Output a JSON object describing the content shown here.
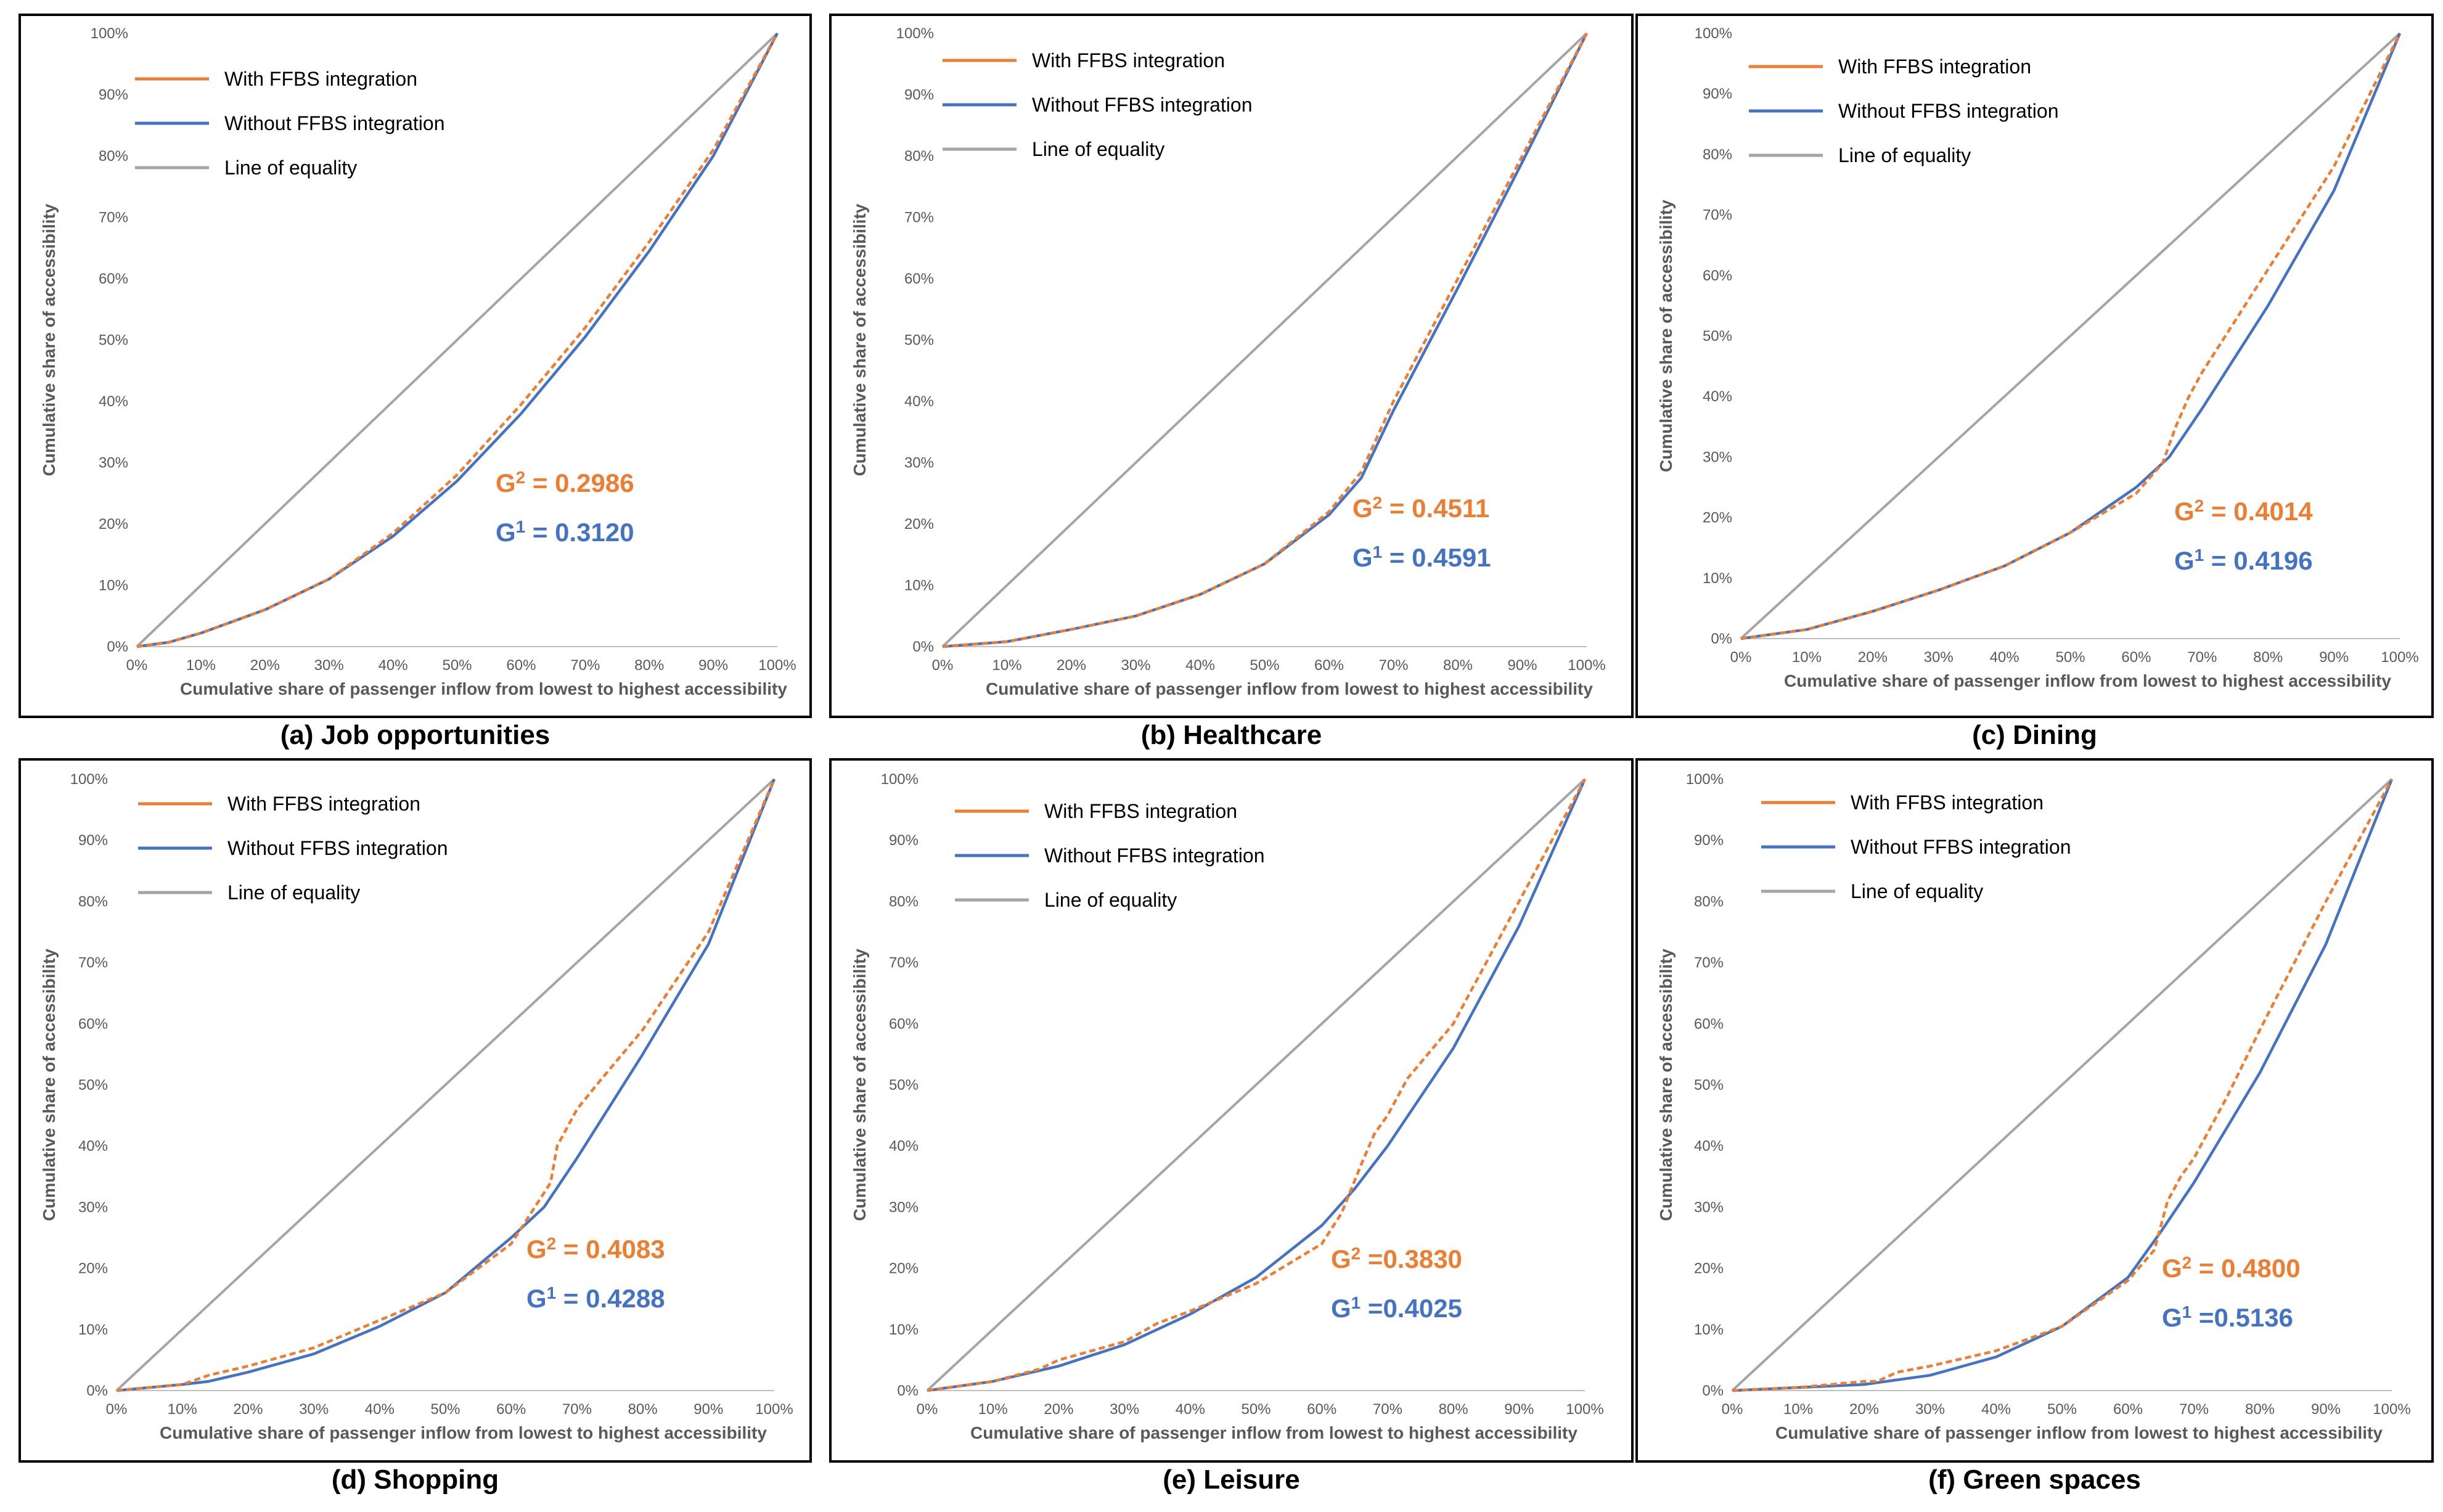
{
  "legend_labels": {
    "with": "With FFBS integration",
    "without": "Without FFBS integration",
    "equality": "Line of equality"
  },
  "axis_labels": {
    "x": "Cumulative share of passenger inflow from lowest to highest accessibility",
    "y": "Cumulative share of accessibility"
  },
  "colors": {
    "with": "#ED7D31",
    "without": "#4472C4",
    "equality": "#A5A5A5"
  },
  "chart_data": [
    {
      "type": "line",
      "caption": "(a) Job  opportunities",
      "ticks": [
        "0%",
        "10%",
        "20%",
        "30%",
        "40%",
        "50%",
        "60%",
        "70%",
        "80%",
        "90%",
        "100%"
      ],
      "xlim": [
        0,
        100
      ],
      "ylim": [
        0,
        100
      ],
      "g2_label": "G",
      "g2_sup": "2",
      "g2_value": " = 0.2986",
      "g1_label": "G",
      "g1_sup": "1",
      "g1_value": " = 0.3120",
      "series": [
        {
          "name": "With FFBS integration",
          "style": "dashed",
          "x": [
            0,
            5,
            10,
            20,
            30,
            40,
            50,
            60,
            70,
            80,
            90,
            100
          ],
          "y": [
            0,
            0.7,
            2.2,
            6,
            11,
            18.5,
            28,
            39.5,
            52,
            66,
            81,
            100
          ]
        },
        {
          "name": "Without FFBS integration",
          "style": "solid",
          "x": [
            0,
            5,
            10,
            20,
            30,
            40,
            50,
            60,
            70,
            80,
            90,
            100
          ],
          "y": [
            0,
            0.7,
            2.2,
            6,
            11,
            18,
            27,
            38,
            50.5,
            64.5,
            80,
            100
          ]
        },
        {
          "name": "Line of equality",
          "style": "solid",
          "x": [
            0,
            100
          ],
          "y": [
            0,
            100
          ]
        }
      ]
    },
    {
      "type": "line",
      "caption": "(b) Healthcare",
      "ticks": [
        "0%",
        "10%",
        "20%",
        "30%",
        "40%",
        "50%",
        "60%",
        "70%",
        "80%",
        "90%",
        "100%"
      ],
      "xlim": [
        0,
        100
      ],
      "ylim": [
        0,
        100
      ],
      "g2_label": "G",
      "g2_sup": "2",
      "g2_value": " = 0.4511",
      "g1_label": "G",
      "g1_sup": "1",
      "g1_value": " = 0.4591",
      "series": [
        {
          "name": "With FFBS integration",
          "style": "dashed",
          "x": [
            0,
            10,
            20,
            30,
            40,
            50,
            60,
            65,
            70,
            80,
            90,
            100
          ],
          "y": [
            0,
            0.8,
            2.8,
            5,
            8.5,
            13.5,
            22,
            28.5,
            40,
            60,
            80,
            100
          ]
        },
        {
          "name": "Without FFBS integration",
          "style": "solid",
          "x": [
            0,
            10,
            20,
            30,
            40,
            50,
            60,
            65,
            70,
            80,
            90,
            100
          ],
          "y": [
            0,
            0.8,
            2.8,
            5,
            8.5,
            13.5,
            21.5,
            27.5,
            38.5,
            58.5,
            79,
            100
          ]
        },
        {
          "name": "Line of equality",
          "style": "solid",
          "x": [
            0,
            100
          ],
          "y": [
            0,
            100
          ]
        }
      ]
    },
    {
      "type": "line",
      "caption": "(c) Dining",
      "ticks": [
        "0%",
        "10%",
        "20%",
        "30%",
        "40%",
        "50%",
        "60%",
        "70%",
        "80%",
        "90%",
        "100%"
      ],
      "xlim": [
        0,
        100
      ],
      "ylim": [
        0,
        100
      ],
      "g2_label": "G",
      "g2_sup": "2",
      "g2_value": " = 0.4014",
      "g1_label": "G",
      "g1_sup": "1",
      "g1_value": " = 0.4196",
      "series": [
        {
          "name": "With FFBS integration",
          "style": "dashed",
          "x": [
            0,
            10,
            20,
            30,
            40,
            50,
            60,
            64,
            66,
            68,
            70,
            80,
            90,
            100
          ],
          "y": [
            0,
            1.5,
            4.5,
            8,
            12,
            17.5,
            24,
            29,
            35,
            40,
            44,
            61,
            78,
            100
          ]
        },
        {
          "name": "Without FFBS integration",
          "style": "solid",
          "x": [
            0,
            10,
            20,
            30,
            40,
            50,
            60,
            65,
            70,
            80,
            90,
            100
          ],
          "y": [
            0,
            1.5,
            4.5,
            8,
            12,
            17.5,
            25,
            30,
            38,
            55,
            74,
            100
          ]
        },
        {
          "name": "Line of equality",
          "style": "solid",
          "x": [
            0,
            100
          ],
          "y": [
            0,
            100
          ]
        }
      ]
    },
    {
      "type": "line",
      "caption": "(d) Shopping",
      "ticks": [
        "0%",
        "10%",
        "20%",
        "30%",
        "40%",
        "50%",
        "60%",
        "70%",
        "80%",
        "90%",
        "100%"
      ],
      "xlim": [
        0,
        100
      ],
      "ylim": [
        0,
        100
      ],
      "g2_label": "G",
      "g2_sup": "2",
      "g2_value": " =  0.4083",
      "g1_label": "G",
      "g1_sup": "1",
      "g1_value": " = 0.4288",
      "series": [
        {
          "name": "With FFBS integration",
          "style": "dashed",
          "x": [
            0,
            10,
            14,
            20,
            30,
            40,
            50,
            60,
            63,
            66,
            67,
            70,
            73,
            80,
            90,
            100
          ],
          "y": [
            0,
            1,
            2.5,
            4,
            7,
            11.5,
            16,
            24,
            29,
            34,
            40,
            46,
            50,
            59,
            75,
            100
          ]
        },
        {
          "name": "Without FFBS integration",
          "style": "solid",
          "x": [
            0,
            10,
            14,
            20,
            30,
            40,
            50,
            60,
            65,
            70,
            80,
            90,
            100
          ],
          "y": [
            0,
            1,
            1.5,
            3,
            6,
            10.5,
            16,
            25,
            30,
            38,
            55,
            73,
            100
          ]
        },
        {
          "name": "Line of equality",
          "style": "solid",
          "x": [
            0,
            100
          ],
          "y": [
            0,
            100
          ]
        }
      ]
    },
    {
      "type": "line",
      "caption": "(e) Leisure",
      "ticks": [
        "0%",
        "10%",
        "20%",
        "30%",
        "40%",
        "50%",
        "60%",
        "70%",
        "80%",
        "90%",
        "100%"
      ],
      "xlim": [
        0,
        100
      ],
      "ylim": [
        0,
        100
      ],
      "g2_label": "G",
      "g2_sup": "2",
      "g2_value": " =0.3830",
      "g1_label": "G",
      "g1_sup": "1",
      "g1_value": " =0.4025",
      "series": [
        {
          "name": "With FFBS integration",
          "style": "dashed",
          "x": [
            0,
            10,
            17,
            20,
            30,
            35,
            40,
            50,
            60,
            63,
            66,
            68,
            70,
            73,
            80,
            90,
            100
          ],
          "y": [
            0,
            1.5,
            3.5,
            5,
            8,
            11,
            13,
            17.5,
            24,
            29,
            37,
            42,
            45,
            51,
            60,
            80,
            100
          ]
        },
        {
          "name": "Without FFBS integration",
          "style": "solid",
          "x": [
            0,
            10,
            20,
            30,
            40,
            50,
            60,
            65,
            70,
            80,
            90,
            100
          ],
          "y": [
            0,
            1.5,
            4,
            7.5,
            12.5,
            18.5,
            27,
            33,
            40,
            56,
            76,
            100
          ]
        },
        {
          "name": "Line of equality",
          "style": "solid",
          "x": [
            0,
            100
          ],
          "y": [
            0,
            100
          ]
        }
      ]
    },
    {
      "type": "line",
      "caption": "(f) Green spaces",
      "ticks": [
        "0%",
        "10%",
        "20%",
        "30%",
        "40%",
        "50%",
        "60%",
        "70%",
        "80%",
        "90%",
        "100%"
      ],
      "xlim": [
        0,
        100
      ],
      "ylim": [
        0,
        100
      ],
      "g2_label": "G",
      "g2_sup": "2",
      "g2_value": " = 0.4800",
      "g1_label": "G",
      "g1_sup": "1",
      "g1_value": " =0.5136",
      "series": [
        {
          "name": "With FFBS integration",
          "style": "dashed",
          "x": [
            0,
            10,
            20,
            22,
            25,
            30,
            40,
            50,
            60,
            64,
            66,
            68,
            70,
            75,
            80,
            90,
            100
          ],
          "y": [
            0,
            0.5,
            1.5,
            1.5,
            3,
            4,
            6.5,
            10.5,
            18,
            23,
            31,
            35,
            38,
            48,
            59,
            80,
            100
          ]
        },
        {
          "name": "Without FFBS integration",
          "style": "solid",
          "x": [
            0,
            10,
            20,
            30,
            40,
            50,
            60,
            65,
            70,
            80,
            90,
            100
          ],
          "y": [
            0,
            0.5,
            1,
            2.5,
            5.5,
            10.5,
            18.5,
            26,
            34,
            52,
            73,
            100
          ]
        },
        {
          "name": "Line of equality",
          "style": "solid",
          "x": [
            0,
            100
          ],
          "y": [
            0,
            100
          ]
        }
      ]
    }
  ]
}
